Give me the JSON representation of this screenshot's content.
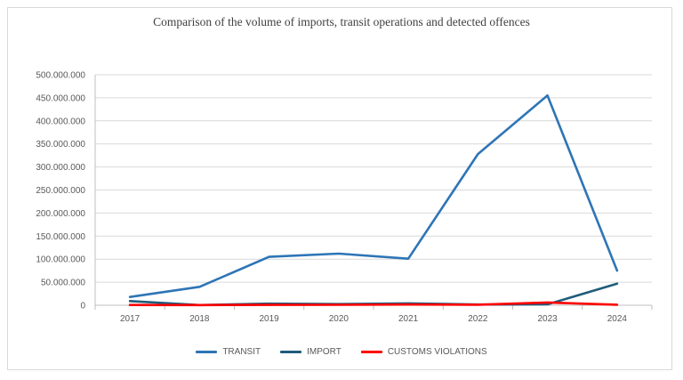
{
  "chart_data": {
    "type": "line",
    "title": "Comparison of the volume of imports, transit operations and detected offences",
    "xlabel": "",
    "ylabel": "",
    "categories": [
      "2017",
      "2018",
      "2019",
      "2020",
      "2021",
      "2022",
      "2023",
      "2024"
    ],
    "ylim": [
      0,
      500000000
    ],
    "yticks": [
      "0",
      "50.000.000",
      "100.000.000",
      "150.000.000",
      "200.000.000",
      "250.000.000",
      "300.000.000",
      "350.000.000",
      "400.000.000",
      "450.000.000",
      "500.000.000"
    ],
    "grid": true,
    "legend_position": "bottom",
    "series": [
      {
        "name": "TRANSIT",
        "color": "#2e75b6",
        "values": [
          18000000,
          40000000,
          105000000,
          112000000,
          101000000,
          328000000,
          455000000,
          75000000
        ]
      },
      {
        "name": "IMPORT",
        "color": "#1f5c7a",
        "values": [
          9000000,
          300000,
          3500000,
          2500000,
          4000000,
          1500000,
          2000000,
          47000000
        ]
      },
      {
        "name": "CUSTOMS VIOLATIONS",
        "color": "#ff0000",
        "values": [
          600000,
          300000,
          800000,
          900000,
          1500000,
          1200000,
          6000000,
          1200000
        ]
      }
    ]
  }
}
